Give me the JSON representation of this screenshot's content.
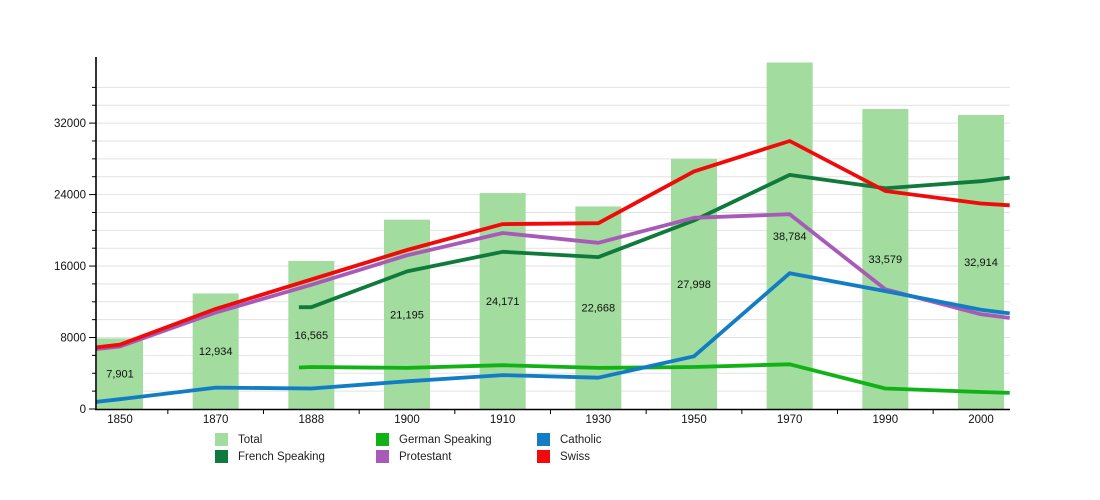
{
  "chart_data": {
    "type": "bar+line",
    "title": "",
    "xlabel": "",
    "ylabel": "",
    "categories": [
      "1850",
      "1870",
      "1888",
      "1900",
      "1910",
      "1930",
      "1950",
      "1970",
      "1990",
      "2000"
    ],
    "ylim": [
      0,
      39400
    ],
    "ytick_minor_step": 2000,
    "ytick_labels": [
      "0",
      "8000",
      "16000",
      "24000",
      "32000"
    ],
    "ytick_label_values": [
      0,
      8000,
      16000,
      24000,
      32000
    ],
    "grid": "horizontal-minor-on",
    "legend_position": "bottom",
    "bar_series": {
      "name": "Total",
      "color": "#a2dc9e",
      "values": [
        7901,
        12934,
        16565,
        21195,
        24171,
        22668,
        27998,
        38784,
        33579,
        32914
      ],
      "labels": [
        "7,901",
        "12,934",
        "16,565",
        "21,195",
        "24,171",
        "22,668",
        "27,998",
        "38,784",
        "33,579",
        "32,914"
      ]
    },
    "line_series": [
      {
        "name": "German Speaking",
        "color": "#10b216",
        "values": [
          null,
          null,
          4700,
          4600,
          4900,
          4600,
          4700,
          5000,
          2300,
          1900
        ],
        "pre_dx": -0.13,
        "pre_value": 4650,
        "post_dx": 0.3,
        "post_value": 1800
      },
      {
        "name": "French Speaking",
        "color": "#0f7a3c",
        "values": [
          null,
          null,
          11400,
          15400,
          17600,
          17000,
          21100,
          26200,
          24700,
          25500
        ],
        "pre_dx": -0.13,
        "pre_value": 11400,
        "post_dx": 0.3,
        "post_value": 25900
      },
      {
        "name": "Protestant",
        "color": "#a85ab8",
        "values": [
          7000,
          10800,
          13900,
          17200,
          19700,
          18600,
          21400,
          21800,
          13400,
          10600
        ],
        "pre_dx": -0.25,
        "pre_value": 6700,
        "post_dx": 0.3,
        "post_value": 10200
      },
      {
        "name": "Catholic",
        "color": "#127cc4",
        "values": [
          1100,
          2400,
          2300,
          3100,
          3800,
          3500,
          5900,
          15200,
          13200,
          11100
        ],
        "pre_dx": -0.25,
        "pre_value": 800,
        "post_dx": 0.3,
        "post_value": 10700
      },
      {
        "name": "Swiss",
        "color": "#f00a0a",
        "values": [
          7200,
          11200,
          14500,
          17800,
          20700,
          20800,
          26600,
          30000,
          24400,
          23000
        ],
        "pre_dx": -0.25,
        "pre_value": 6900,
        "post_dx": 0.3,
        "post_value": 22800
      }
    ],
    "legend": {
      "items": [
        {
          "label": "Total",
          "color": "#a2dc9e"
        },
        {
          "label": "French Speaking",
          "color": "#0f7a3c"
        },
        {
          "label": "German Speaking",
          "color": "#10b216"
        },
        {
          "label": "Protestant",
          "color": "#a85ab8"
        },
        {
          "label": "Catholic",
          "color": "#127cc4"
        },
        {
          "label": "Swiss",
          "color": "#f00a0a"
        }
      ]
    }
  }
}
